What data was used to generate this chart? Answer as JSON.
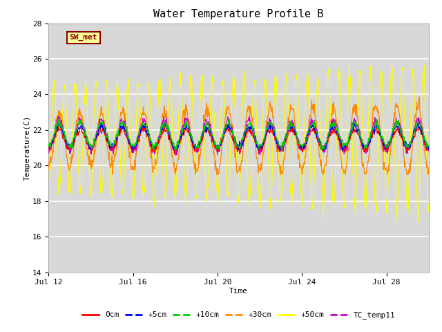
{
  "title": "Water Temperature Profile B",
  "xlabel": "Time",
  "ylabel": "Temperature(C)",
  "ylim": [
    14,
    28
  ],
  "yticks": [
    14,
    16,
    18,
    20,
    22,
    24,
    26,
    28
  ],
  "xtick_labels": [
    "Jul 12",
    "Jul 16",
    "Jul 20",
    "Jul 24",
    "Jul 28"
  ],
  "xtick_positions": [
    0,
    4,
    8,
    12,
    16
  ],
  "plot_bg_color": "#d8d8d8",
  "fig_bg_color": "#ffffff",
  "grid_color": "#ffffff",
  "annotation_text": "SW_met",
  "annotation_bg": "#ffff99",
  "annotation_border": "#8B0000",
  "annotation_text_color": "#8B0000",
  "legend_labels": [
    "0cm",
    "+5cm",
    "+10cm",
    "+30cm",
    "+50cm",
    "TC_temp11"
  ],
  "legend_colors": [
    "#ff0000",
    "#0000ff",
    "#00cc00",
    "#ff8800",
    "#ffff00",
    "#cc00cc"
  ],
  "n_days": 18,
  "base_temp": 21.5,
  "points_per_day": 48
}
